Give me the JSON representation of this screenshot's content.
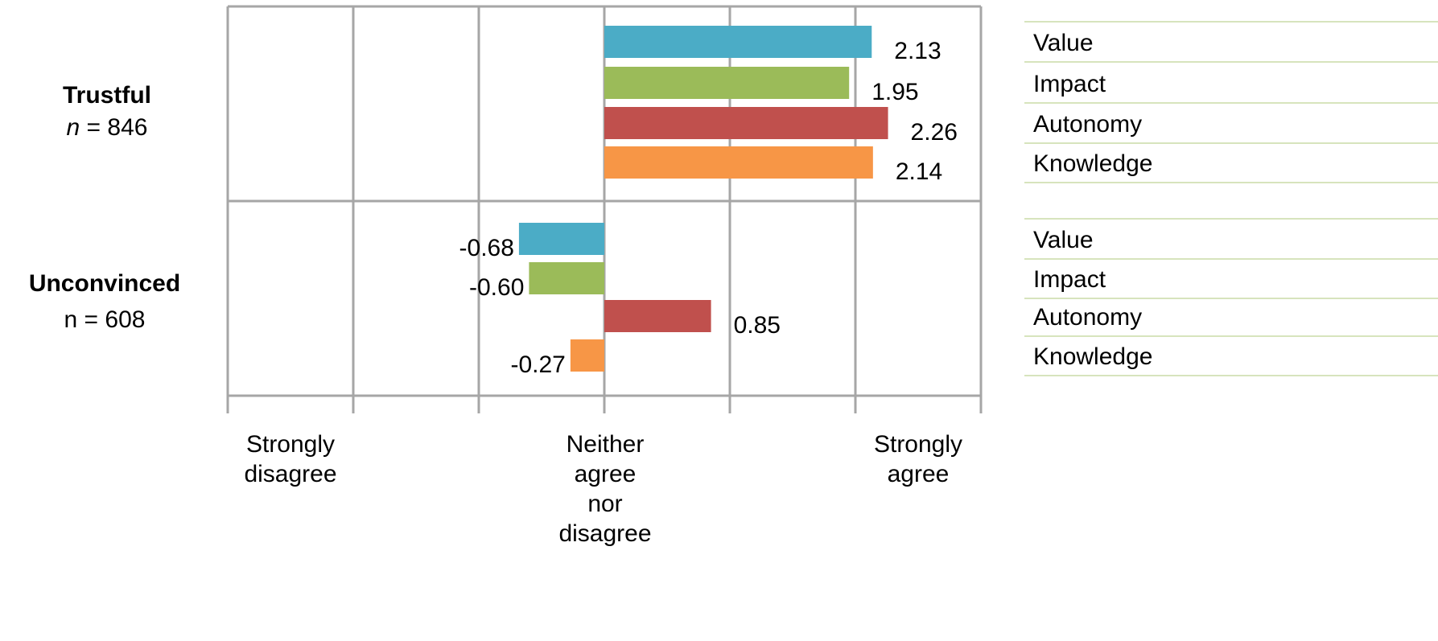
{
  "chart_data": {
    "type": "bar",
    "orientation": "horizontal",
    "xlim": [
      -3,
      3
    ],
    "grid": true,
    "scale_labels": [
      {
        "value": -3,
        "lines": [
          "Strongly",
          "disagree"
        ]
      },
      {
        "value": 0,
        "lines": [
          "Neither",
          "agree",
          "nor",
          "disagree"
        ]
      },
      {
        "value": 3,
        "lines": [
          "Strongly",
          "agree"
        ]
      }
    ],
    "groups": [
      {
        "name": "Trustful",
        "n_prefix": "n",
        "n_suffix": " = 846",
        "n_italic": true,
        "bars": [
          {
            "label": "Value",
            "value": 2.13,
            "display": "2.13",
            "color": "#4bacc6"
          },
          {
            "label": "Impact",
            "value": 1.95,
            "display": "1.95",
            "color": "#9bbb59"
          },
          {
            "label": "Autonomy",
            "value": 2.26,
            "display": "2.26",
            "color": "#c0504d"
          },
          {
            "label": "Knowledge",
            "value": 2.14,
            "display": "2.14",
            "color": "#f79646"
          }
        ]
      },
      {
        "name": "Unconvinced",
        "n_prefix": "n",
        "n_suffix": " = 608",
        "n_italic": false,
        "bars": [
          {
            "label": "Value",
            "value": -0.68,
            "display": "-0.68",
            "color": "#4bacc6"
          },
          {
            "label": "Impact",
            "value": -0.6,
            "display": "-0.60",
            "color": "#9bbb59"
          },
          {
            "label": "Autonomy",
            "value": 0.85,
            "display": "0.85",
            "color": "#c0504d"
          },
          {
            "label": "Knowledge",
            "value": -0.27,
            "display": "-0.27",
            "color": "#f79646"
          }
        ]
      }
    ]
  }
}
